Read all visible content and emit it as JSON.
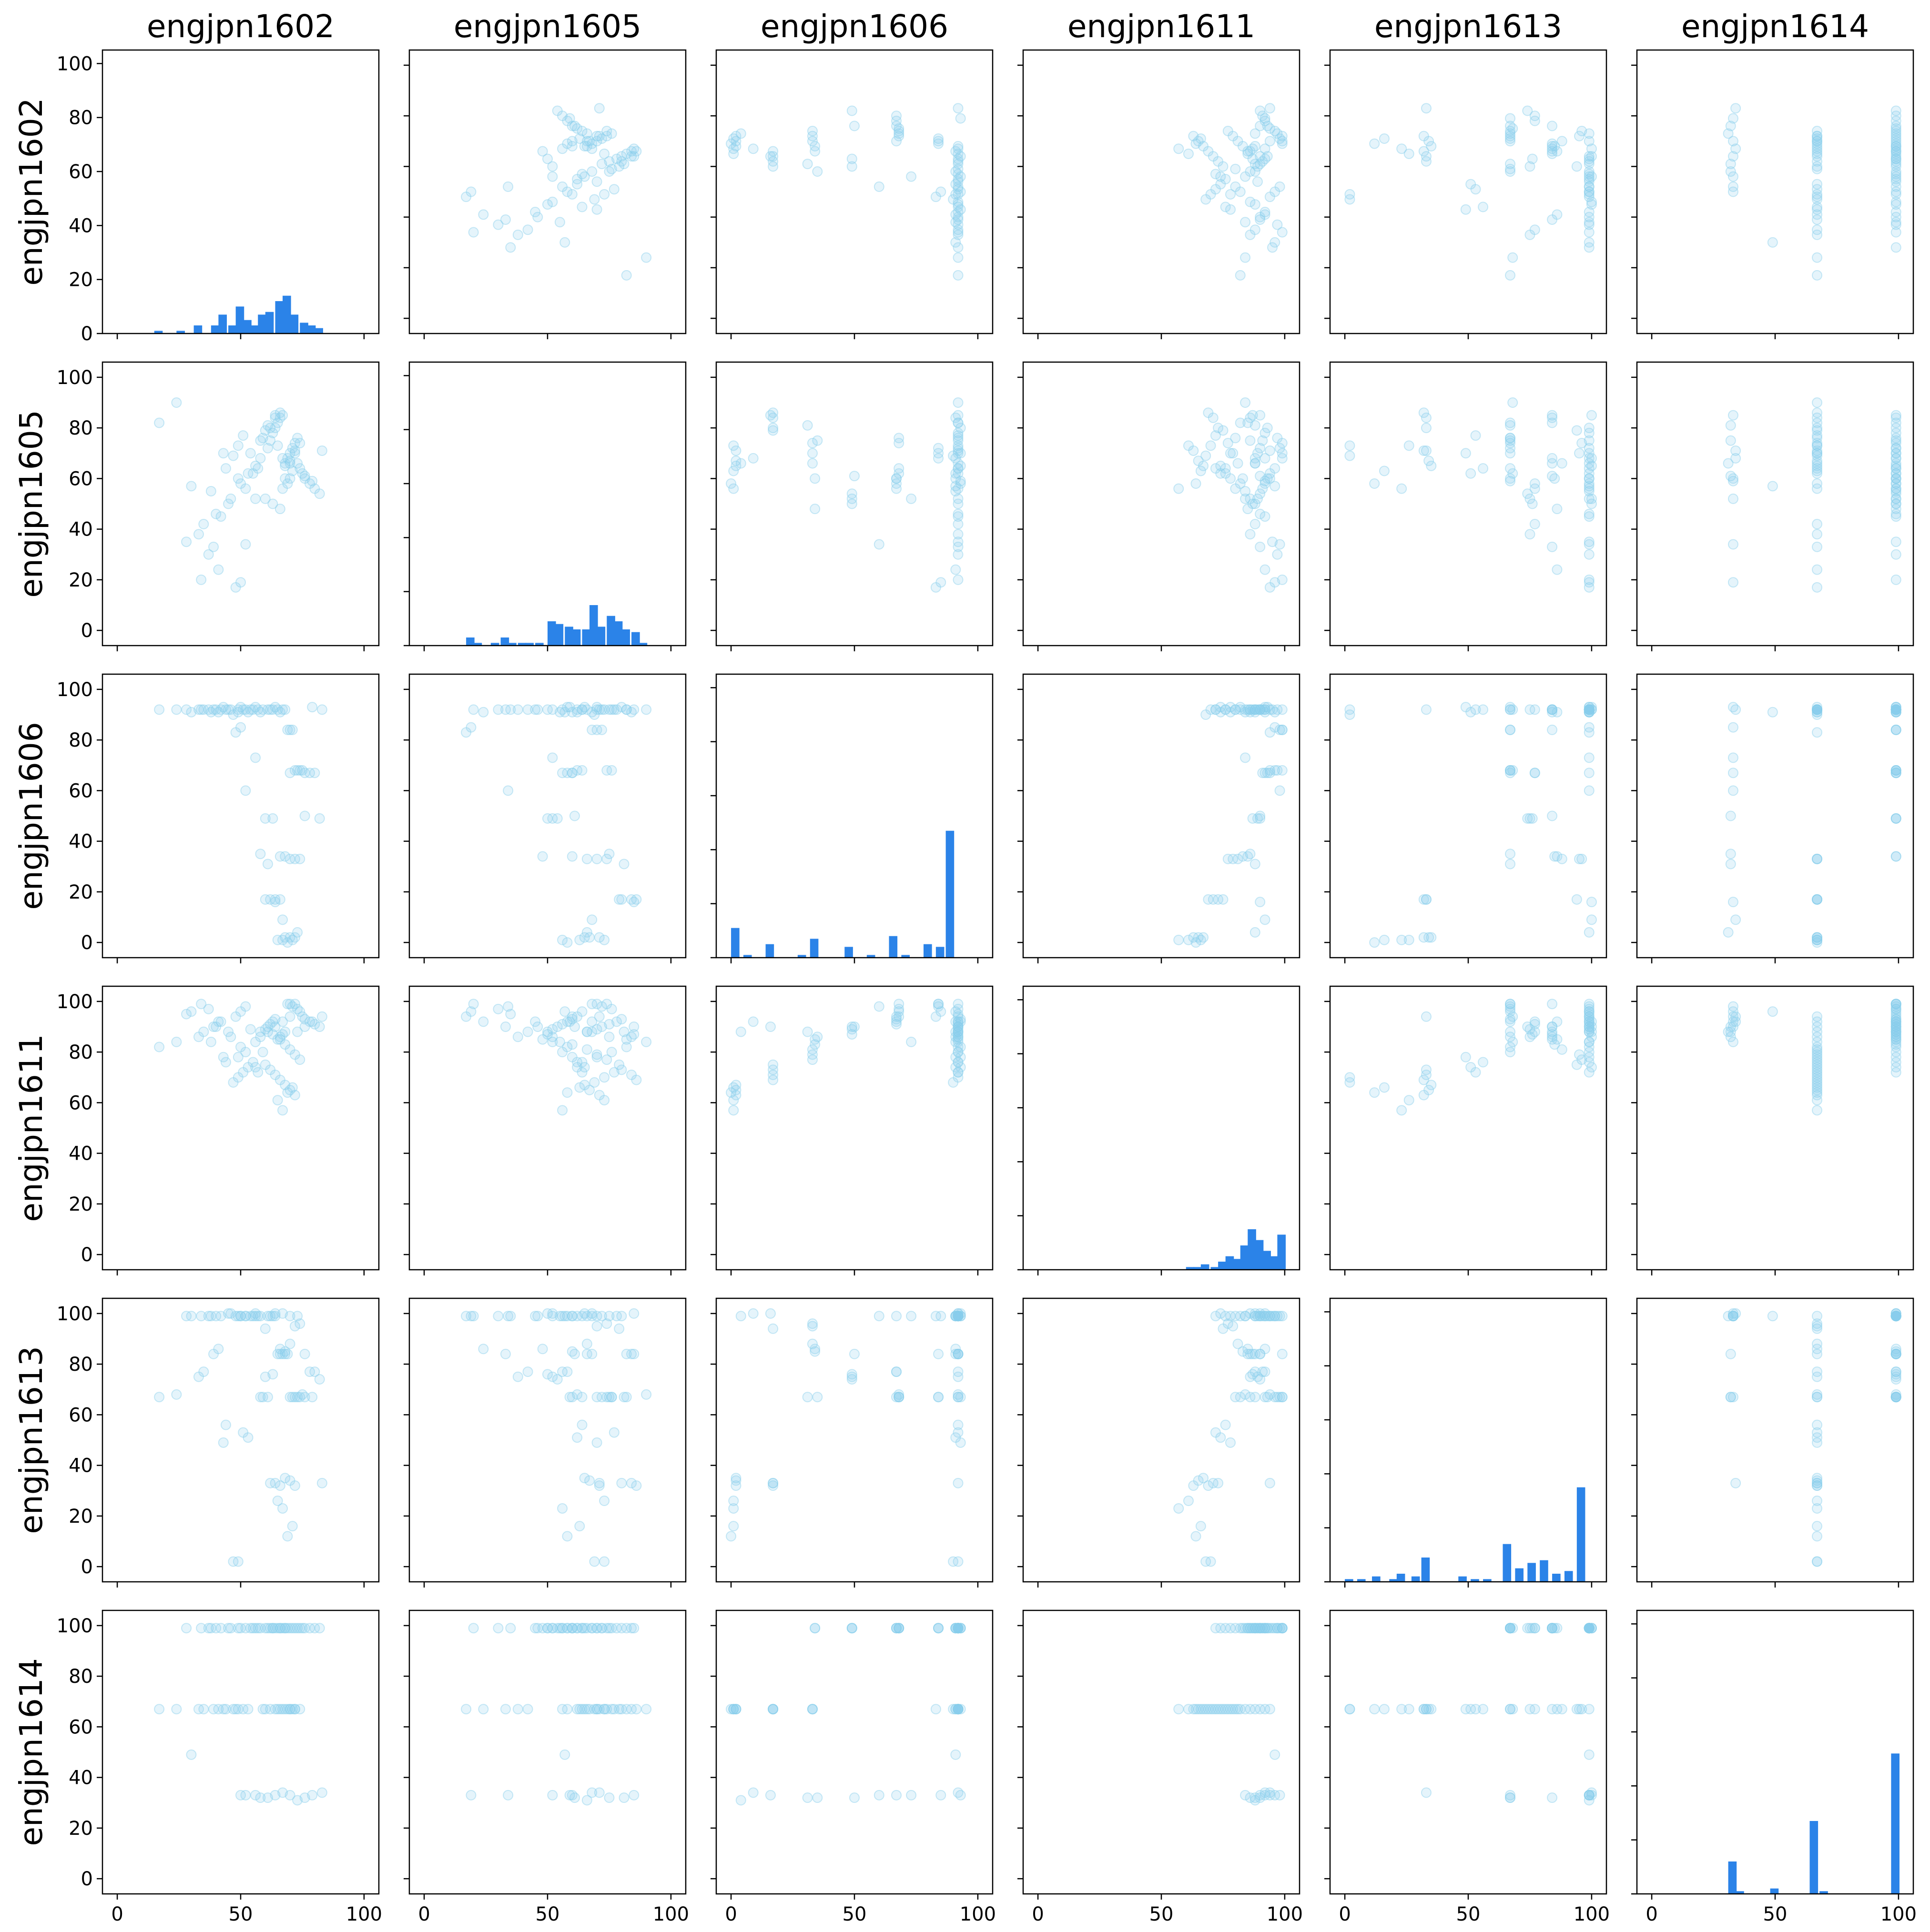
{
  "chart_data": {
    "type": "scatter",
    "subtype": "pair-plot (scatter matrix with histogram diagonal)",
    "variables": [
      "engjpn1602",
      "engjpn1605",
      "engjpn1606",
      "engjpn1611",
      "engjpn1613",
      "engjpn1614"
    ],
    "axis_range": [
      -6,
      106
    ],
    "x_ticks": [
      0,
      50,
      100
    ],
    "y_ticks": [
      0,
      20,
      40,
      60,
      80,
      100
    ],
    "y_range": [
      0,
      105
    ],
    "grid": false,
    "legend": "none",
    "colors": {
      "points": "#87ceeb",
      "bars": "#2b83e8",
      "axes": "#000000"
    },
    "diagonal_histograms": [
      {
        "variable": "engjpn1602",
        "bins": [
          [
            15,
            1
          ],
          [
            24,
            1
          ],
          [
            31,
            3
          ],
          [
            38,
            3
          ],
          [
            41,
            7
          ],
          [
            45,
            3
          ],
          [
            48,
            10
          ],
          [
            51,
            5
          ],
          [
            54,
            3
          ],
          [
            57,
            7
          ],
          [
            60,
            8
          ],
          [
            64,
            12
          ],
          [
            67,
            14
          ],
          [
            70,
            7
          ],
          [
            74,
            4
          ],
          [
            77,
            3
          ],
          [
            80,
            2
          ]
        ]
      },
      {
        "variable": "engjpn1605",
        "bins": [
          [
            17,
            3
          ],
          [
            20,
            1
          ],
          [
            27,
            1
          ],
          [
            31,
            3
          ],
          [
            34,
            1
          ],
          [
            38,
            1
          ],
          [
            41,
            1
          ],
          [
            45,
            1
          ],
          [
            50,
            9
          ],
          [
            53,
            8
          ],
          [
            57,
            7
          ],
          [
            60,
            6
          ],
          [
            64,
            6
          ],
          [
            67,
            15
          ],
          [
            70,
            7
          ],
          [
            74,
            11
          ],
          [
            77,
            9
          ],
          [
            80,
            6
          ],
          [
            84,
            5
          ],
          [
            87,
            1
          ]
        ]
      },
      {
        "variable": "engjpn1606",
        "bins": [
          [
            0,
            11
          ],
          [
            5,
            1
          ],
          [
            14,
            5
          ],
          [
            27,
            1
          ],
          [
            32,
            7
          ],
          [
            46,
            4
          ],
          [
            55,
            1
          ],
          [
            64,
            8
          ],
          [
            69,
            1
          ],
          [
            78,
            5
          ],
          [
            83,
            4
          ],
          [
            87,
            47
          ]
        ]
      },
      {
        "variable": "engjpn1611",
        "bins": [
          [
            60,
            1
          ],
          [
            63,
            1
          ],
          [
            66,
            2
          ],
          [
            70,
            1
          ],
          [
            73,
            3
          ],
          [
            76,
            5
          ],
          [
            79,
            4
          ],
          [
            82,
            9
          ],
          [
            85,
            15
          ],
          [
            88,
            11
          ],
          [
            91,
            7
          ],
          [
            94,
            5
          ],
          [
            97,
            13
          ]
        ]
      },
      {
        "variable": "engjpn1613",
        "bins": [
          [
            0,
            1
          ],
          [
            5,
            1
          ],
          [
            11,
            2
          ],
          [
            18,
            1
          ],
          [
            21,
            3
          ],
          [
            27,
            2
          ],
          [
            31,
            9
          ],
          [
            46,
            2
          ],
          [
            51,
            1
          ],
          [
            56,
            1
          ],
          [
            64,
            14
          ],
          [
            69,
            5
          ],
          [
            74,
            7
          ],
          [
            79,
            8
          ],
          [
            84,
            3
          ],
          [
            89,
            4
          ],
          [
            94,
            35
          ]
        ]
      },
      {
        "variable": "engjpn1614",
        "bins": [
          [
            31,
            12
          ],
          [
            34,
            1
          ],
          [
            48,
            2
          ],
          [
            64,
            27
          ],
          [
            68,
            1
          ],
          [
            97,
            52
          ]
        ]
      }
    ],
    "observations": {
      "engjpn1602": [
        34,
        37,
        28,
        42,
        40,
        45,
        46,
        38,
        50,
        52,
        49,
        55,
        56,
        57,
        58,
        54,
        61,
        62,
        63,
        64,
        65,
        66,
        67,
        68,
        69,
        70,
        71,
        72,
        73,
        74,
        75,
        76,
        78,
        80,
        82,
        60,
        63,
        66,
        68,
        70,
        72,
        74,
        60,
        62,
        64,
        66,
        68,
        70,
        72,
        65,
        67,
        69,
        71,
        47,
        49,
        51,
        53,
        44,
        43,
        59,
        17,
        24,
        33,
        35,
        39,
        41,
        48,
        50,
        52,
        56,
        58,
        61,
        64,
        67,
        70,
        73,
        76,
        79,
        83,
        30
      ],
      "engjpn1605": [
        20,
        30,
        35,
        45,
        46,
        50,
        52,
        55,
        58,
        56,
        60,
        62,
        65,
        64,
        68,
        70,
        72,
        75,
        78,
        80,
        82,
        84,
        85,
        66,
        68,
        70,
        72,
        74,
        76,
        64,
        62,
        60,
        58,
        56,
        54,
        52,
        50,
        48,
        60,
        66,
        70,
        74,
        79,
        80,
        84,
        86,
        65,
        67,
        71,
        73,
        56,
        58,
        63,
        69,
        73,
        77,
        62,
        64,
        70,
        76,
        82,
        90,
        38,
        42,
        33,
        24,
        17,
        19,
        34,
        52,
        75,
        81,
        85,
        68,
        60,
        66,
        61,
        59,
        71,
        57
      ],
      "engjpn1606": [
        92,
        92,
        92,
        92,
        92,
        92,
        92,
        91,
        93,
        92,
        91,
        92,
        93,
        92,
        91,
        92,
        92,
        92,
        92,
        93,
        92,
        91,
        92,
        92,
        84,
        84,
        84,
        68,
        68,
        68,
        68,
        67,
        67,
        67,
        49,
        49,
        49,
        34,
        34,
        33,
        33,
        33,
        17,
        17,
        17,
        17,
        2,
        2,
        2,
        1,
        1,
        0,
        1,
        90,
        92,
        92,
        91,
        92,
        93,
        92,
        92,
        92,
        92,
        92,
        92,
        91,
        83,
        85,
        60,
        73,
        35,
        31,
        16,
        9,
        67,
        4,
        50,
        93,
        92,
        91
      ],
      "engjpn1611": [
        99,
        97,
        95,
        92,
        90,
        88,
        86,
        84,
        82,
        80,
        78,
        76,
        74,
        72,
        88,
        89,
        90,
        91,
        92,
        93,
        85,
        86,
        87,
        88,
        99,
        99,
        98,
        99,
        97,
        96,
        94,
        93,
        92,
        91,
        90,
        89,
        87,
        85,
        83,
        81,
        79,
        77,
        75,
        73,
        71,
        69,
        67,
        65,
        63,
        61,
        57,
        64,
        66,
        68,
        70,
        72,
        74,
        76,
        78,
        80,
        82,
        84,
        86,
        88,
        90,
        92,
        94,
        96,
        98,
        84,
        86,
        88,
        90,
        92,
        94,
        88,
        90,
        92,
        94,
        96
      ],
      "engjpn1613": [
        99,
        99,
        99,
        99,
        99,
        100,
        100,
        99,
        99,
        99,
        99,
        99,
        100,
        99,
        99,
        99,
        99,
        99,
        99,
        99,
        84,
        84,
        84,
        84,
        84,
        67,
        67,
        67,
        67,
        67,
        68,
        67,
        77,
        77,
        74,
        75,
        76,
        86,
        85,
        88,
        95,
        96,
        94,
        33,
        33,
        32,
        35,
        34,
        32,
        26,
        23,
        12,
        16,
        2,
        2,
        53,
        51,
        56,
        49,
        67,
        67,
        68,
        75,
        77,
        84,
        86,
        99,
        99,
        99,
        99,
        67,
        67,
        100,
        100,
        99,
        99,
        84,
        67,
        33,
        99
      ],
      "engjpn1614": [
        99,
        99,
        99,
        99,
        99,
        99,
        99,
        99,
        99,
        99,
        99,
        99,
        99,
        99,
        99,
        99,
        99,
        99,
        99,
        99,
        99,
        99,
        99,
        99,
        99,
        99,
        99,
        99,
        99,
        99,
        99,
        99,
        99,
        99,
        99,
        99,
        99,
        99,
        99,
        67,
        67,
        67,
        67,
        67,
        67,
        67,
        67,
        67,
        67,
        67,
        67,
        67,
        67,
        67,
        67,
        67,
        67,
        67,
        67,
        67,
        67,
        67,
        67,
        67,
        67,
        67,
        67,
        33,
        33,
        33,
        32,
        32,
        33,
        34,
        33,
        31,
        32,
        33,
        34,
        49
      ]
    }
  }
}
